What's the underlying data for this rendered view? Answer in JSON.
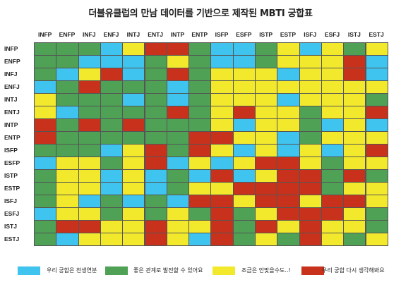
{
  "title": "더블유클럽의 만남 데이터를 기반으로 제작된 MBTI 궁합표",
  "chart_data": {
    "type": "heatmap",
    "title": "더블유클럽의 만남 데이터를 기반으로 제작된 MBTI 궁합표",
    "columns": [
      "INFP",
      "ENFP",
      "INFJ",
      "ENFJ",
      "INTJ",
      "ENTJ",
      "INTP",
      "ENTP",
      "ISFP",
      "ESFP",
      "ISTP",
      "ESTP",
      "ISFJ",
      "ESFJ",
      "ISTJ",
      "ESTJ"
    ],
    "rows": [
      "INFP",
      "ENFP",
      "INFJ",
      "ENFJ",
      "INTJ",
      "ENTJ",
      "INTP",
      "ENTP",
      "ISFP",
      "ESFP",
      "ISTP",
      "ESTP",
      "ISFJ",
      "ESFJ",
      "ISTJ",
      "ESTJ"
    ],
    "levels": {
      "1": {
        "label": "우리 궁합은 천생연분",
        "color": "#3fc3ef"
      },
      "2": {
        "label": "좋은 관계로 발전할 수 있어요",
        "color": "#4ea155"
      },
      "3": {
        "label": "조금은 안맞을수도..!",
        "color": "#f2e92d"
      },
      "4": {
        "label": "우리 궁합 다시 생각해봐요",
        "color": "#c8321d"
      }
    },
    "values": [
      [
        2,
        2,
        2,
        1,
        3,
        4,
        4,
        2,
        1,
        1,
        2,
        3,
        1,
        3,
        2,
        3
      ],
      [
        2,
        2,
        1,
        1,
        1,
        2,
        3,
        2,
        1,
        1,
        2,
        3,
        3,
        3,
        4,
        1
      ],
      [
        2,
        1,
        3,
        4,
        1,
        2,
        4,
        2,
        3,
        3,
        3,
        1,
        3,
        3,
        4,
        1
      ],
      [
        1,
        2,
        4,
        2,
        2,
        2,
        1,
        2,
        3,
        3,
        3,
        3,
        3,
        3,
        3,
        3
      ],
      [
        3,
        2,
        2,
        2,
        1,
        2,
        1,
        2,
        3,
        3,
        3,
        1,
        3,
        3,
        3,
        2
      ],
      [
        3,
        1,
        2,
        2,
        2,
        2,
        4,
        2,
        3,
        4,
        3,
        3,
        2,
        3,
        3,
        4
      ],
      [
        4,
        2,
        4,
        2,
        4,
        2,
        2,
        2,
        3,
        1,
        3,
        3,
        2,
        1,
        3,
        1
      ],
      [
        4,
        2,
        2,
        2,
        2,
        2,
        2,
        4,
        4,
        3,
        3,
        1,
        2,
        3,
        3,
        3
      ],
      [
        2,
        2,
        2,
        1,
        3,
        4,
        2,
        4,
        3,
        1,
        3,
        1,
        3,
        1,
        3,
        4
      ],
      [
        1,
        3,
        3,
        2,
        3,
        4,
        1,
        3,
        1,
        3,
        4,
        4,
        3,
        2,
        3,
        3
      ],
      [
        2,
        3,
        3,
        1,
        3,
        1,
        2,
        1,
        4,
        1,
        3,
        4,
        4,
        2,
        4,
        2
      ],
      [
        2,
        3,
        3,
        1,
        3,
        1,
        2,
        3,
        3,
        4,
        4,
        4,
        4,
        2,
        3,
        3
      ],
      [
        2,
        3,
        1,
        2,
        1,
        2,
        1,
        4,
        4,
        3,
        4,
        4,
        3,
        4,
        4,
        3
      ],
      [
        1,
        3,
        3,
        2,
        3,
        2,
        3,
        2,
        4,
        2,
        3,
        4,
        4,
        4,
        3,
        2
      ],
      [
        2,
        4,
        4,
        3,
        3,
        4,
        3,
        3,
        4,
        2,
        4,
        3,
        4,
        3,
        3,
        2
      ],
      [
        2,
        1,
        3,
        3,
        3,
        4,
        3,
        1,
        4,
        2,
        3,
        2,
        4,
        3,
        2,
        3
      ]
    ]
  }
}
